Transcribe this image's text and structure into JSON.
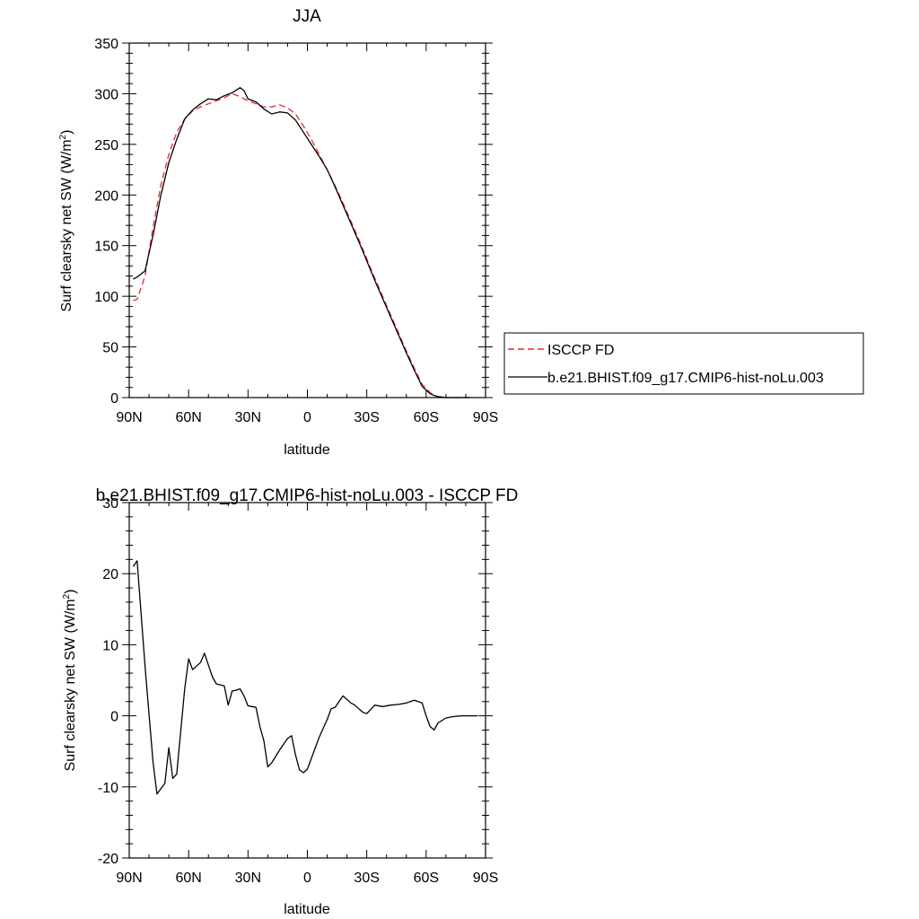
{
  "chart_data": [
    {
      "type": "line",
      "title": "JJA",
      "xlabel": "latitude",
      "ylabel_main": "Surf clearsky net SW (W/m",
      "ylabel_sup": "2",
      "ylabel_close": ")",
      "xlim": [
        90,
        -90
      ],
      "ylim": [
        0,
        350
      ],
      "x_ticks": [
        90,
        60,
        30,
        0,
        -30,
        -60,
        -90
      ],
      "x_tick_labels": [
        "90N",
        "60N",
        "30N",
        "0",
        "30S",
        "60S",
        "90S"
      ],
      "y_ticks": [
        0,
        50,
        100,
        150,
        200,
        250,
        300,
        350
      ],
      "y_tick_labels": [
        "0",
        "50",
        "100",
        "150",
        "200",
        "250",
        "300",
        "350"
      ],
      "grid": false,
      "legend_placement": "right",
      "series": [
        {
          "name": "ISCCP FD",
          "color": "#e8262b",
          "dash": "dashed",
          "x": [
            88,
            86,
            82,
            78,
            74,
            70,
            66,
            62,
            58,
            54,
            50,
            46,
            42,
            38,
            34,
            30,
            26,
            22,
            18,
            14,
            10,
            6,
            2,
            -2,
            -6,
            -10,
            -14,
            -18,
            -22,
            -26,
            -30,
            -34,
            -38,
            -42,
            -46,
            -50,
            -54,
            -58,
            -62,
            -64,
            -66,
            -70,
            -74,
            -78,
            -82
          ],
          "values": [
            96,
            97,
            120,
            168,
            210,
            240,
            262,
            275,
            283,
            287,
            290,
            293,
            296,
            300,
            297,
            293,
            290,
            287,
            287,
            289,
            286,
            280,
            268,
            255,
            240,
            225,
            209,
            192,
            174,
            156,
            137,
            118,
            100,
            82,
            64,
            46,
            29,
            13,
            5,
            2,
            1,
            0,
            0,
            0,
            0
          ]
        },
        {
          "name": "b.e21.BHIST.f09_g17.CMIP6-hist-noLu.003",
          "color": "#000000",
          "dash": "solid",
          "x": [
            88,
            86,
            82,
            78,
            74,
            70,
            66,
            62,
            58,
            54,
            50,
            46,
            42,
            38,
            34,
            32,
            30,
            26,
            22,
            18,
            14,
            10,
            6,
            2,
            -2,
            -6,
            -10,
            -14,
            -18,
            -22,
            -26,
            -30,
            -34,
            -38,
            -42,
            -46,
            -50,
            -54,
            -58,
            -62,
            -64,
            -66,
            -70,
            -74,
            -78,
            -82
          ],
          "values": [
            117,
            119,
            125,
            160,
            200,
            232,
            255,
            275,
            284,
            290,
            295,
            294,
            298,
            301,
            306,
            303,
            295,
            292,
            285,
            280,
            282,
            281,
            274,
            262,
            250,
            238,
            225,
            208,
            190,
            172,
            154,
            135,
            116,
            98,
            80,
            62,
            44,
            27,
            11,
            4,
            2,
            1,
            0,
            0,
            0,
            0
          ]
        }
      ]
    },
    {
      "type": "line",
      "title": "b.e21.BHIST.f09_g17.CMIP6-hist-noLu.003 - ISCCP FD",
      "xlabel": "latitude",
      "ylabel_main": "Surf clearsky net SW (W/m",
      "ylabel_sup": "2",
      "ylabel_close": ")",
      "xlim": [
        90,
        -90
      ],
      "ylim": [
        -20,
        30
      ],
      "x_ticks": [
        90,
        60,
        30,
        0,
        -30,
        -60,
        -90
      ],
      "x_tick_labels": [
        "90N",
        "60N",
        "30N",
        "0",
        "30S",
        "60S",
        "90S"
      ],
      "y_ticks": [
        -20,
        -10,
        0,
        10,
        20,
        30
      ],
      "y_tick_labels": [
        "-20",
        "-10",
        "0",
        "10",
        "20",
        "30"
      ],
      "grid": false,
      "series": [
        {
          "color": "#000000",
          "dash": "solid",
          "x": [
            88,
            86,
            82,
            78,
            76,
            72,
            70,
            68,
            66,
            62,
            60,
            58,
            56,
            54,
            52,
            48,
            46,
            42,
            40,
            38,
            36,
            34,
            32,
            30,
            28,
            26,
            24,
            22,
            20,
            18,
            14,
            10,
            8,
            6,
            4,
            2,
            0,
            -2,
            -6,
            -10,
            -12,
            -14,
            -16,
            -18,
            -22,
            -24,
            -26,
            -28,
            -30,
            -34,
            -38,
            -42,
            -46,
            -50,
            -54,
            -58,
            -60,
            -62,
            -64,
            -66,
            -70,
            -74,
            -78,
            -82,
            -86
          ],
          "values": [
            21,
            21.8,
            7,
            -6.5,
            -11,
            -9.5,
            -4.5,
            -8.8,
            -8.2,
            3.8,
            8,
            6.5,
            7,
            7.5,
            8.8,
            5.5,
            4.5,
            4.2,
            1.5,
            3.5,
            3.6,
            3.8,
            2.8,
            1.4,
            1.3,
            1.2,
            -1.5,
            -3.5,
            -7.2,
            -6.6,
            -4.8,
            -3.2,
            -2.8,
            -5.5,
            -7.6,
            -8.0,
            -7.5,
            -6,
            -3,
            -0.5,
            1,
            1.2,
            2,
            2.8,
            1.8,
            1.5,
            1.0,
            0.5,
            0.3,
            1.5,
            1.3,
            1.5,
            1.6,
            1.8,
            2.2,
            1.8,
            0,
            -1.5,
            -2,
            -1,
            -0.3,
            -0.1,
            0,
            0,
            0
          ]
        }
      ]
    }
  ]
}
